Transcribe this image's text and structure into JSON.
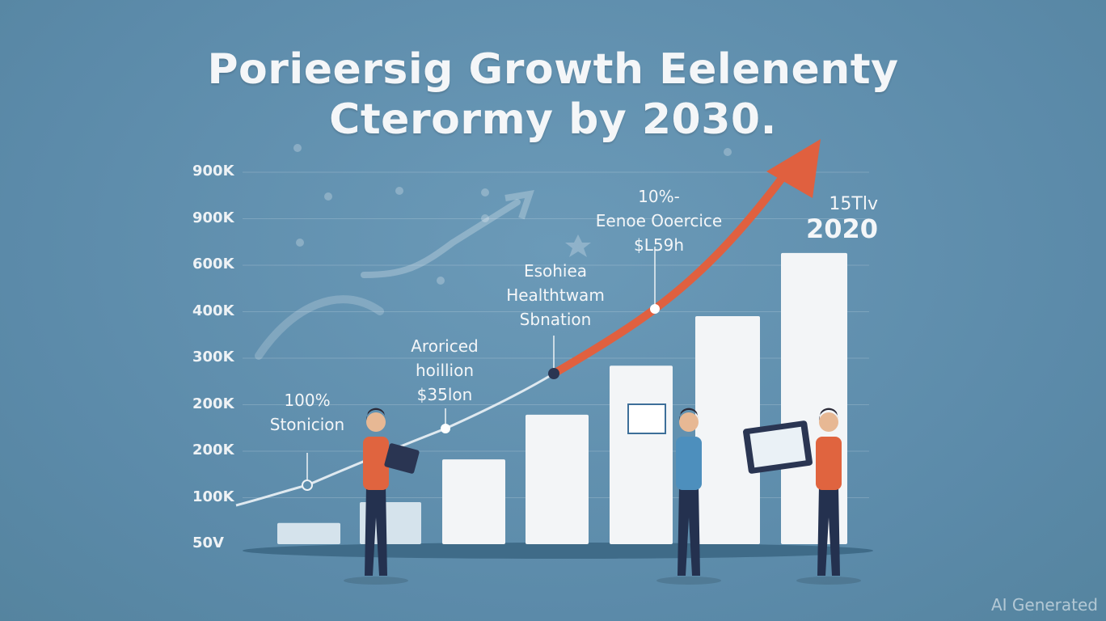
{
  "title_lines": [
    "Porieersig Growth Eelenenty",
    "Cterormy by 2030."
  ],
  "chart_data": {
    "type": "bar",
    "title": "Porieersig Growth Eelenenty Cterormy by 2030.",
    "y_tick_labels": [
      "900K",
      "900K",
      "600K",
      "400K",
      "300K",
      "200K",
      "200K",
      "100K",
      "50V"
    ],
    "bar_fill_fraction_of_axis": [
      0.057,
      0.113,
      0.228,
      0.348,
      0.48,
      0.613,
      0.783
    ],
    "grid": true,
    "trend_line": {
      "color_start": "#dfe9f0",
      "color_end": "#e0603f",
      "direction": "rising"
    },
    "annotations": [
      {
        "lines": [
          "100%",
          "Stonicion"
        ]
      },
      {
        "lines": [
          "Aroriced",
          "hoillion",
          "$35lon"
        ]
      },
      {
        "lines": [
          "Esohiea",
          "Healthtwam",
          "Sbnation"
        ]
      },
      {
        "lines": [
          "10%-",
          "Eenoe Ooercice",
          "$L59h"
        ]
      }
    ],
    "year_label": {
      "top": "15Tlv",
      "year": "2020"
    }
  },
  "colors": {
    "background": "#5f8fae",
    "arrow": "#e0603f",
    "bars": "#f3f5f7",
    "person_shirt_orange": "#e0643f",
    "person_shirt_blue": "#4d8fbd",
    "pants": "#24314f"
  },
  "watermark": "AI Generated"
}
